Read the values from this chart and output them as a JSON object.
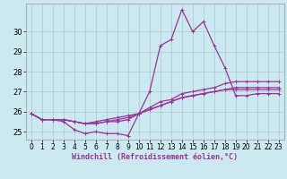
{
  "xlabel": "Windchill (Refroidissement éolien,°C)",
  "bg_color": "#cce8f0",
  "line_color": "#993399",
  "grid_color": "#aacccc",
  "x_hours": [
    0,
    1,
    2,
    3,
    4,
    5,
    6,
    7,
    8,
    9,
    10,
    11,
    12,
    13,
    14,
    15,
    16,
    17,
    18,
    19,
    20,
    21,
    22,
    23
  ],
  "series": {
    "line1": [
      25.9,
      25.6,
      25.6,
      25.5,
      25.1,
      24.9,
      25.0,
      24.9,
      24.9,
      24.8,
      25.9,
      27.0,
      29.3,
      29.6,
      31.1,
      30.0,
      30.5,
      29.3,
      28.2,
      26.8,
      26.8,
      26.9,
      26.9,
      26.9
    ],
    "line2": [
      25.9,
      25.6,
      25.6,
      25.6,
      25.5,
      25.4,
      25.5,
      25.6,
      25.7,
      25.8,
      25.9,
      26.1,
      26.3,
      26.5,
      26.7,
      26.8,
      26.9,
      27.0,
      27.1,
      27.1,
      27.1,
      27.1,
      27.1,
      27.1
    ],
    "line3": [
      25.9,
      25.6,
      25.6,
      25.6,
      25.5,
      25.4,
      25.4,
      25.5,
      25.6,
      25.7,
      25.9,
      26.1,
      26.3,
      26.5,
      26.7,
      26.8,
      26.9,
      27.0,
      27.1,
      27.2,
      27.2,
      27.2,
      27.2,
      27.2
    ],
    "line4": [
      25.9,
      25.6,
      25.6,
      25.6,
      25.5,
      25.4,
      25.4,
      25.5,
      25.5,
      25.6,
      25.9,
      26.2,
      26.5,
      26.6,
      26.9,
      27.0,
      27.1,
      27.2,
      27.4,
      27.5,
      27.5,
      27.5,
      27.5,
      27.5
    ]
  },
  "ylim": [
    24.6,
    31.4
  ],
  "yticks": [
    25,
    26,
    27,
    28,
    29,
    30
  ],
  "xlim": [
    -0.5,
    23.5
  ],
  "xticks": [
    0,
    1,
    2,
    3,
    4,
    5,
    6,
    7,
    8,
    9,
    10,
    11,
    12,
    13,
    14,
    15,
    16,
    17,
    18,
    19,
    20,
    21,
    22,
    23
  ],
  "xlabel_fontsize": 6.0,
  "tick_fontsize": 5.5,
  "ytick_fontsize": 6.0,
  "marker": "+",
  "markersize": 3.5,
  "linewidth": 0.9
}
